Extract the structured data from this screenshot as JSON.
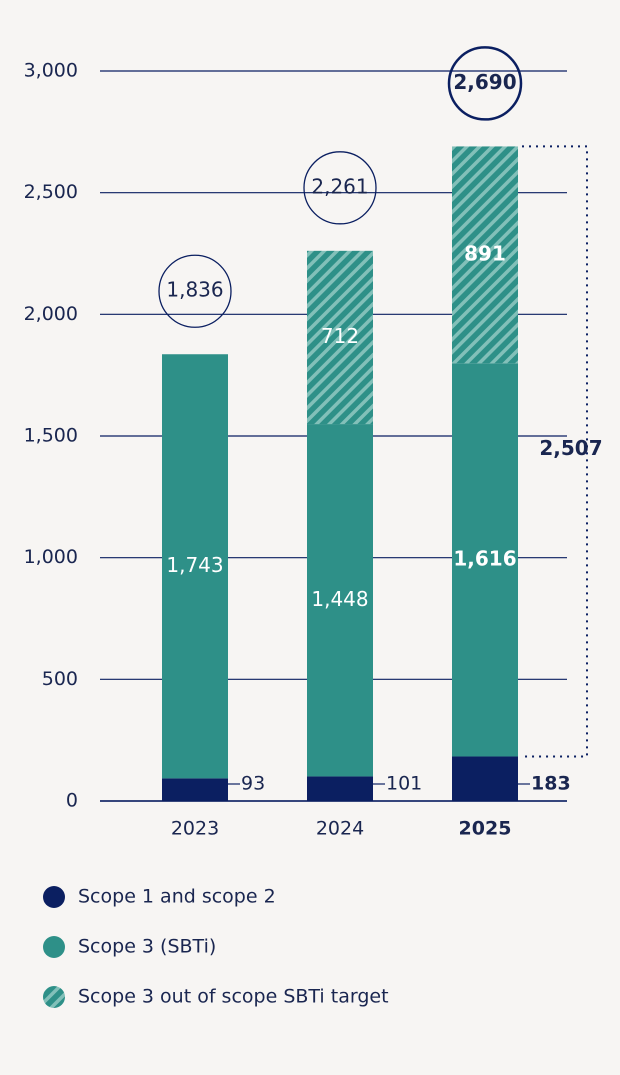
{
  "chart_data": {
    "type": "stacked_bar",
    "categories": [
      "2023",
      "2024",
      "2025"
    ],
    "series": [
      {
        "name": "Scope 1 and scope 2",
        "color": "#0b1f61",
        "values": [
          93,
          101,
          183
        ]
      },
      {
        "name": "Scope 3 (SBTi)",
        "color": "#2e9088",
        "values": [
          1743,
          1448,
          1616
        ],
        "value_labels": [
          "1,743",
          "1,448",
          "1,616"
        ]
      },
      {
        "name": "Scope 3 out of scope SBTi target",
        "color": "#2e9088",
        "hatch": true,
        "values": [
          null,
          712,
          891
        ]
      }
    ],
    "totals": {
      "values": [
        1836,
        2261,
        2690
      ],
      "value_labels": [
        "1,836",
        "2,261",
        "2,690"
      ]
    },
    "annotation": {
      "value": 2507,
      "label": "2,507"
    },
    "ylim": [
      0,
      3000
    ],
    "yticks": [
      0,
      500,
      {
        "value": 1000,
        "label": "1,000"
      },
      {
        "value": 1500,
        "label": "1,500"
      },
      {
        "value": 2000,
        "label": "2,000"
      },
      {
        "value": 2500,
        "label": "2,500"
      },
      {
        "value": 3000,
        "label": "3,000"
      }
    ],
    "grid": true
  }
}
